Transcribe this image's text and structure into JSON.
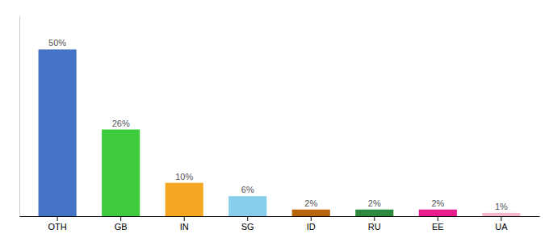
{
  "chart_data": {
    "type": "bar",
    "categories": [
      "OTH",
      "GB",
      "IN",
      "SG",
      "ID",
      "RU",
      "EE",
      "UA"
    ],
    "values": [
      50,
      26,
      10,
      6,
      2,
      2,
      2,
      1
    ],
    "value_labels": [
      "50%",
      "26%",
      "10%",
      "6%",
      "2%",
      "2%",
      "2%",
      "1%"
    ],
    "colors": [
      "#4472c4",
      "#3dca3d",
      "#f5a623",
      "#87ceeb",
      "#b8650a",
      "#2d8a3e",
      "#e91e8c",
      "#f4b8c8"
    ],
    "ylim": [
      0,
      60
    ],
    "grid": false,
    "data_labels": true,
    "tick_labels": "x"
  }
}
